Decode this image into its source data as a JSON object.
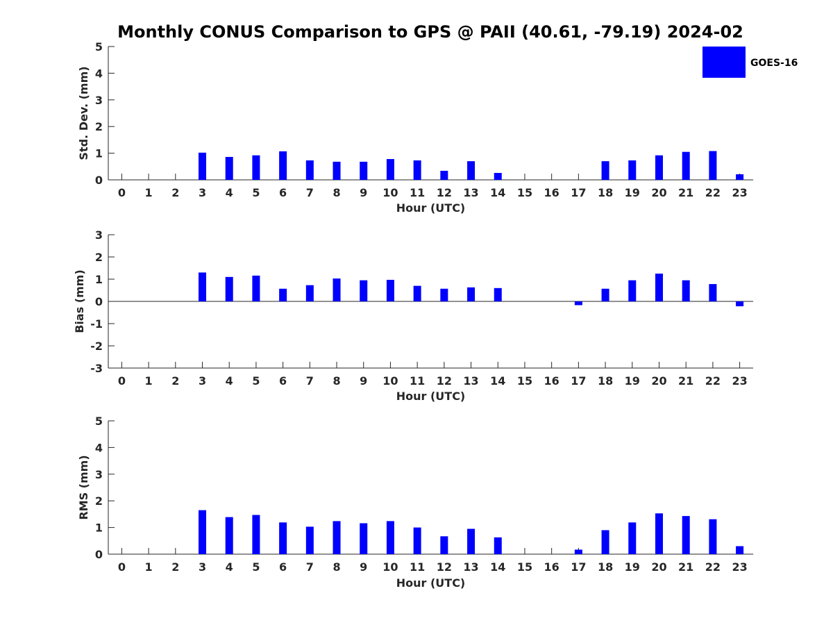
{
  "title": "Monthly CONUS Comparison to GPS @ PAII (40.61, -79.19) 2024-02",
  "legend": {
    "label": "GOES-16",
    "color": "#0000ff",
    "placement": "top-right"
  },
  "colors": {
    "bar": "#0000ff",
    "axis": "#262626"
  },
  "chart_data": [
    {
      "type": "bar",
      "xlabel": "Hour (UTC)",
      "ylabel": "Std. Dev. (mm)",
      "ylim": [
        0,
        5
      ],
      "yticks": [
        0,
        1,
        2,
        3,
        4,
        5
      ],
      "categories": [
        "0",
        "1",
        "2",
        "3",
        "4",
        "5",
        "6",
        "7",
        "8",
        "9",
        "10",
        "11",
        "12",
        "13",
        "14",
        "15",
        "16",
        "17",
        "18",
        "19",
        "20",
        "21",
        "22",
        "23"
      ],
      "series": [
        {
          "name": "GOES-16",
          "values": [
            null,
            null,
            null,
            1.02,
            0.86,
            0.92,
            1.07,
            0.73,
            0.68,
            0.68,
            0.78,
            0.73,
            0.34,
            0.7,
            0.26,
            null,
            null,
            null,
            0.7,
            0.73,
            0.92,
            1.05,
            1.08,
            0.21
          ]
        }
      ],
      "grid": false
    },
    {
      "type": "bar",
      "xlabel": "Hour (UTC)",
      "ylabel": "Bias (mm)",
      "ylim": [
        -3,
        3
      ],
      "yticks": [
        -3,
        -2,
        -1,
        0,
        1,
        2,
        3
      ],
      "categories": [
        "0",
        "1",
        "2",
        "3",
        "4",
        "5",
        "6",
        "7",
        "8",
        "9",
        "10",
        "11",
        "12",
        "13",
        "14",
        "15",
        "16",
        "17",
        "18",
        "19",
        "20",
        "21",
        "22",
        "23"
      ],
      "series": [
        {
          "name": "GOES-16",
          "values": [
            null,
            null,
            null,
            1.3,
            1.1,
            1.16,
            0.57,
            0.73,
            1.03,
            0.95,
            0.97,
            0.7,
            0.57,
            0.63,
            0.6,
            null,
            null,
            -0.17,
            0.57,
            0.95,
            1.25,
            0.95,
            0.78,
            -0.22
          ]
        }
      ],
      "grid": false
    },
    {
      "type": "bar",
      "xlabel": "Hour (UTC)",
      "ylabel": "RMS (mm)",
      "ylim": [
        0,
        5
      ],
      "yticks": [
        0,
        1,
        2,
        3,
        4,
        5
      ],
      "categories": [
        "0",
        "1",
        "2",
        "3",
        "4",
        "5",
        "6",
        "7",
        "8",
        "9",
        "10",
        "11",
        "12",
        "13",
        "14",
        "15",
        "16",
        "17",
        "18",
        "19",
        "20",
        "21",
        "22",
        "23"
      ],
      "series": [
        {
          "name": "GOES-16",
          "values": [
            null,
            null,
            null,
            1.65,
            1.39,
            1.47,
            1.19,
            1.03,
            1.24,
            1.16,
            1.24,
            1.0,
            0.67,
            0.95,
            0.63,
            null,
            null,
            0.17,
            0.9,
            1.19,
            1.53,
            1.43,
            1.31,
            0.3
          ]
        }
      ],
      "grid": false
    }
  ]
}
